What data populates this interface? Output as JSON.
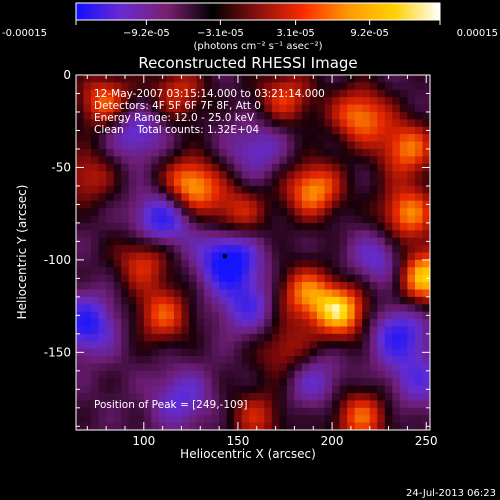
{
  "chart_data": {
    "type": "heatmap",
    "title": "Reconstructed RHESSI Image",
    "xlabel": "Heliocentric X (arcsec)",
    "ylabel": "Heliocentric Y (arcsec)",
    "xlim": [
      64,
      252
    ],
    "ylim": [
      -192,
      0
    ],
    "x_ticks": [
      100,
      150,
      200,
      250
    ],
    "y_ticks": [
      0,
      -50,
      -100,
      -150
    ],
    "colorbar": {
      "ticks": [
        "-0.00015",
        "−9.2e-05",
        "−3.1e-05",
        "3.1e-05",
        "9.2e-05",
        "0.00015"
      ],
      "tick_values": [
        -0.00015,
        -9.2e-05,
        -3.1e-05,
        3.1e-05,
        9.2e-05,
        0.00015
      ],
      "unit_label": "(photons cm⁻² s⁻¹ asec⁻²)",
      "colors": [
        "#1010ff",
        "#6a2ad0",
        "#7a2070",
        "#000000",
        "#8a1010",
        "#ff2a00",
        "#ff9a00",
        "#ffd000",
        "#ffffff"
      ]
    },
    "annotations": [
      "12-May-2007 03:15:14.000 to 03:21:14.000",
      "Detectors: 4F 5F 6F 7F 8F, Att 0",
      "Energy Range: 12.0 - 25.0 keV",
      "Clean    Total counts: 1.32E+04"
    ],
    "peak_label": "Position of Peak = [249,-109]",
    "peak": [
      249,
      -109
    ],
    "marker": [
      143,
      -98
    ],
    "blobs": [
      {
        "x": 80,
        "y": -15,
        "v": 0.75
      },
      {
        "x": 118,
        "y": -10,
        "v": 0.55
      },
      {
        "x": 175,
        "y": -12,
        "v": 0.6
      },
      {
        "x": 215,
        "y": -22,
        "v": 0.8
      },
      {
        "x": 240,
        "y": -40,
        "v": 0.75
      },
      {
        "x": 70,
        "y": -55,
        "v": 0.5
      },
      {
        "x": 125,
        "y": -60,
        "v": 0.95
      },
      {
        "x": 190,
        "y": -62,
        "v": 0.85
      },
      {
        "x": 240,
        "y": -75,
        "v": 0.8
      },
      {
        "x": 150,
        "y": -75,
        "v": 0.55
      },
      {
        "x": 100,
        "y": -100,
        "v": 0.6
      },
      {
        "x": 185,
        "y": -118,
        "v": 0.7
      },
      {
        "x": 205,
        "y": -128,
        "v": 0.95
      },
      {
        "x": 249,
        "y": -109,
        "v": 1.0
      },
      {
        "x": 110,
        "y": -130,
        "v": 0.65
      },
      {
        "x": 175,
        "y": -150,
        "v": 0.5
      },
      {
        "x": 160,
        "y": -185,
        "v": 0.5
      },
      {
        "x": 215,
        "y": -185,
        "v": 0.7
      },
      {
        "x": 95,
        "y": -30,
        "v": -0.6
      },
      {
        "x": 110,
        "y": -78,
        "v": -0.8
      },
      {
        "x": 145,
        "y": -100,
        "v": -1.0
      },
      {
        "x": 70,
        "y": -135,
        "v": -0.75
      },
      {
        "x": 160,
        "y": -40,
        "v": -0.45
      },
      {
        "x": 225,
        "y": -100,
        "v": -0.5
      },
      {
        "x": 155,
        "y": -125,
        "v": -0.55
      },
      {
        "x": 235,
        "y": -140,
        "v": -0.7
      },
      {
        "x": 120,
        "y": -175,
        "v": -0.5
      },
      {
        "x": 190,
        "y": -165,
        "v": -0.45
      },
      {
        "x": 245,
        "y": -165,
        "v": -0.45
      }
    ]
  },
  "footer": {
    "timestamp": "24-Jul-2013 06:23"
  }
}
